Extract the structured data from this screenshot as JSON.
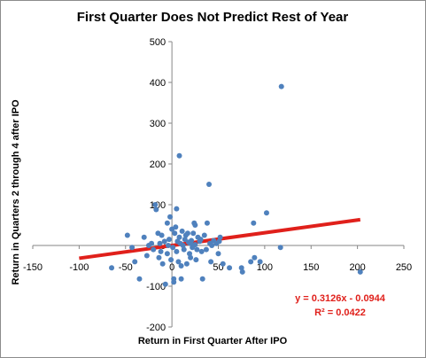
{
  "chart_data": {
    "type": "scatter",
    "title": "First Quarter Does Not Predict Rest of Year",
    "xlabel": "Return in First Quarter After IPO",
    "ylabel": "Return in Quarters 2 through 4 after IPO",
    "xlim": [
      -150,
      250
    ],
    "ylim": [
      -200,
      500
    ],
    "xticks": [
      -150,
      -100,
      -50,
      0,
      50,
      100,
      150,
      200,
      250
    ],
    "yticks": [
      -200,
      -100,
      0,
      100,
      200,
      300,
      400,
      500
    ],
    "xtick_labels": [
      "-150",
      "-100",
      "-50",
      "0",
      "50",
      "100",
      "150",
      "200",
      "250"
    ],
    "ytick_labels": [
      "-200",
      "-100",
      "0",
      "100",
      "200",
      "300",
      "400",
      "500"
    ],
    "grid": false,
    "point_color": "#4f81bd",
    "trendline_color": "#e0201b",
    "points": [
      {
        "x": -65,
        "y": -55
      },
      {
        "x": -48,
        "y": 25
      },
      {
        "x": -43,
        "y": -5
      },
      {
        "x": -40,
        "y": -40
      },
      {
        "x": -35,
        "y": -82
      },
      {
        "x": -30,
        "y": 20
      },
      {
        "x": -27,
        "y": -25
      },
      {
        "x": -25,
        "y": 0
      },
      {
        "x": -22,
        "y": 5
      },
      {
        "x": -20,
        "y": -10
      },
      {
        "x": -18,
        "y": 100
      },
      {
        "x": -17,
        "y": 88
      },
      {
        "x": -15,
        "y": 30
      },
      {
        "x": -14,
        "y": -30
      },
      {
        "x": -13,
        "y": 5
      },
      {
        "x": -12,
        "y": -15
      },
      {
        "x": -11,
        "y": 25
      },
      {
        "x": -10,
        "y": -45
      },
      {
        "x": -8,
        "y": 10
      },
      {
        "x": -7,
        "y": -95
      },
      {
        "x": -5,
        "y": 55
      },
      {
        "x": -5,
        "y": -20
      },
      {
        "x": -4,
        "y": 0
      },
      {
        "x": -3,
        "y": 15
      },
      {
        "x": -2,
        "y": 70
      },
      {
        "x": -1,
        "y": -35
      },
      {
        "x": 0,
        "y": 40
      },
      {
        "x": 1,
        "y": -5
      },
      {
        "x": 2,
        "y": -82
      },
      {
        "x": 2,
        "y": -90
      },
      {
        "x": 3,
        "y": 30
      },
      {
        "x": 4,
        "y": 45
      },
      {
        "x": 5,
        "y": -15
      },
      {
        "x": 5,
        "y": 90
      },
      {
        "x": 6,
        "y": 10
      },
      {
        "x": 7,
        "y": -40
      },
      {
        "x": 8,
        "y": 20
      },
      {
        "x": 8,
        "y": 220
      },
      {
        "x": 9,
        "y": 5
      },
      {
        "x": 10,
        "y": -50
      },
      {
        "x": 10,
        "y": -82
      },
      {
        "x": 11,
        "y": 35
      },
      {
        "x": 12,
        "y": 0
      },
      {
        "x": 13,
        "y": -10
      },
      {
        "x": 14,
        "y": 15
      },
      {
        "x": 15,
        "y": 25
      },
      {
        "x": 16,
        "y": -45
      },
      {
        "x": 17,
        "y": 30
      },
      {
        "x": 18,
        "y": 8
      },
      {
        "x": 19,
        "y": -20
      },
      {
        "x": 20,
        "y": 5
      },
      {
        "x": 20,
        "y": -30
      },
      {
        "x": 21,
        "y": 12
      },
      {
        "x": 22,
        "y": -5
      },
      {
        "x": 23,
        "y": 30
      },
      {
        "x": 24,
        "y": 55
      },
      {
        "x": 25,
        "y": 50
      },
      {
        "x": 25,
        "y": 2
      },
      {
        "x": 26,
        "y": -35
      },
      {
        "x": 27,
        "y": -10
      },
      {
        "x": 28,
        "y": 20
      },
      {
        "x": 30,
        "y": 10
      },
      {
        "x": 31,
        "y": 15
      },
      {
        "x": 32,
        "y": -15
      },
      {
        "x": 33,
        "y": -82
      },
      {
        "x": 35,
        "y": 25
      },
      {
        "x": 37,
        "y": -10
      },
      {
        "x": 38,
        "y": 55
      },
      {
        "x": 40,
        "y": 150
      },
      {
        "x": 41,
        "y": 5
      },
      {
        "x": 42,
        "y": -40
      },
      {
        "x": 43,
        "y": 0
      },
      {
        "x": 45,
        "y": 12
      },
      {
        "x": 48,
        "y": 5
      },
      {
        "x": 50,
        "y": -20
      },
      {
        "x": 51,
        "y": 10
      },
      {
        "x": 52,
        "y": 20
      },
      {
        "x": 55,
        "y": -45
      },
      {
        "x": 62,
        "y": -55
      },
      {
        "x": 75,
        "y": -55
      },
      {
        "x": 76,
        "y": -65
      },
      {
        "x": 85,
        "y": -40
      },
      {
        "x": 88,
        "y": 55
      },
      {
        "x": 89,
        "y": -30
      },
      {
        "x": 95,
        "y": -40
      },
      {
        "x": 102,
        "y": 80
      },
      {
        "x": 117,
        "y": -5
      },
      {
        "x": 118,
        "y": 390
      },
      {
        "x": 203,
        "y": -65
      }
    ],
    "trendline": {
      "slope": 0.3126,
      "intercept": -0.0944,
      "x_start": -100,
      "x_end": 203
    },
    "annotations": [
      "y = 0.3126x - 0.0944",
      "R² = 0.0422"
    ]
  }
}
